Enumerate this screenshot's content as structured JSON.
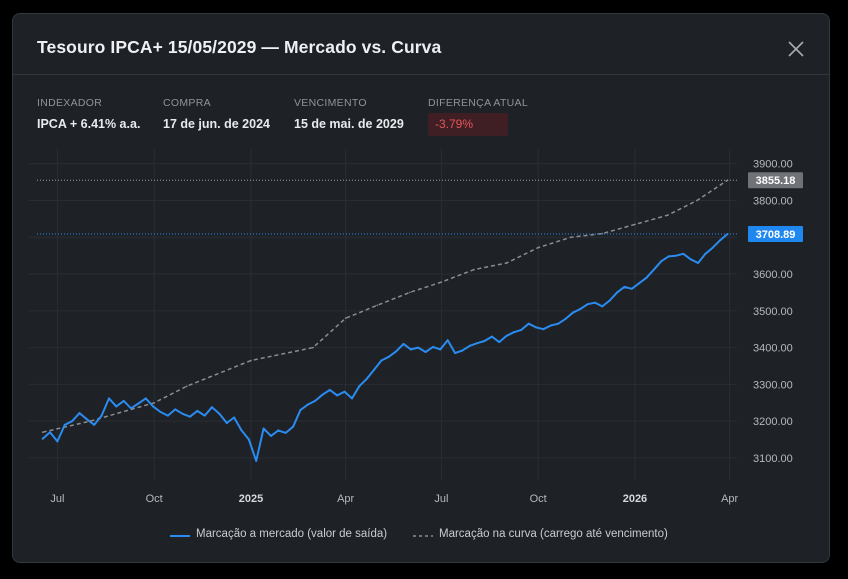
{
  "modal": {
    "title": "Tesouro IPCA+ 15/05/2029 — Mercado vs. Curva",
    "close_icon": "close-icon"
  },
  "info": [
    {
      "label": "INDEXADOR",
      "value": "IPCA + 6.41% a.a."
    },
    {
      "label": "COMPRA",
      "value": "17 de jun. de 2024"
    },
    {
      "label": "VENCIMENTO",
      "value": "15 de mai. de 2029"
    },
    {
      "label": "DIFERENÇA ATUAL",
      "value": "-3.79%"
    }
  ],
  "colors": {
    "market": "#2a8cf0",
    "curve": "#8a8d92",
    "negative": "#e5555a",
    "background": "#1e2126"
  },
  "chart_data": {
    "type": "line",
    "x_ticks": [
      "Jul",
      "Oct",
      "2025",
      "Apr",
      "Jul",
      "Oct",
      "2026",
      "Apr"
    ],
    "y_ticks": [
      "3100.00",
      "3200.00",
      "3300.00",
      "3400.00",
      "3500.00",
      "3600.00",
      "3700.00",
      "3800.00",
      "3900.00"
    ],
    "ylim": [
      3040,
      3940
    ],
    "grid": true,
    "legend_position": "bottom",
    "last_values": {
      "market": "3708.89",
      "curve": "3855.18"
    },
    "series": [
      {
        "name": "Marcação a mercado (valor de saída)",
        "style": "solid",
        "color": "#2a8cf0",
        "points": [
          [
            "2024-06-17",
            3152
          ],
          [
            "2024-06-24",
            3170
          ],
          [
            "2024-07-01",
            3145
          ],
          [
            "2024-07-08",
            3190
          ],
          [
            "2024-07-15",
            3200
          ],
          [
            "2024-07-22",
            3222
          ],
          [
            "2024-07-29",
            3205
          ],
          [
            "2024-08-05",
            3190
          ],
          [
            "2024-08-12",
            3215
          ],
          [
            "2024-08-19",
            3262
          ],
          [
            "2024-08-26",
            3240
          ],
          [
            "2024-09-02",
            3255
          ],
          [
            "2024-09-09",
            3235
          ],
          [
            "2024-09-16",
            3248
          ],
          [
            "2024-09-23",
            3262
          ],
          [
            "2024-09-30",
            3240
          ],
          [
            "2024-10-07",
            3225
          ],
          [
            "2024-10-14",
            3215
          ],
          [
            "2024-10-21",
            3232
          ],
          [
            "2024-10-28",
            3220
          ],
          [
            "2024-11-04",
            3212
          ],
          [
            "2024-11-11",
            3228
          ],
          [
            "2024-11-18",
            3215
          ],
          [
            "2024-11-25",
            3238
          ],
          [
            "2024-12-02",
            3220
          ],
          [
            "2024-12-09",
            3195
          ],
          [
            "2024-12-16",
            3210
          ],
          [
            "2024-12-23",
            3175
          ],
          [
            "2024-12-30",
            3150
          ],
          [
            "2025-01-06",
            3092
          ],
          [
            "2025-01-13",
            3180
          ],
          [
            "2025-01-20",
            3160
          ],
          [
            "2025-01-27",
            3175
          ],
          [
            "2025-02-03",
            3168
          ],
          [
            "2025-02-10",
            3185
          ],
          [
            "2025-02-17",
            3230
          ],
          [
            "2025-02-24",
            3245
          ],
          [
            "2025-03-03",
            3255
          ],
          [
            "2025-03-10",
            3272
          ],
          [
            "2025-03-17",
            3285
          ],
          [
            "2025-03-24",
            3270
          ],
          [
            "2025-03-31",
            3280
          ],
          [
            "2025-04-07",
            3262
          ],
          [
            "2025-04-14",
            3295
          ],
          [
            "2025-04-21",
            3315
          ],
          [
            "2025-04-28",
            3340
          ],
          [
            "2025-05-05",
            3365
          ],
          [
            "2025-05-12",
            3375
          ],
          [
            "2025-05-19",
            3390
          ],
          [
            "2025-05-26",
            3410
          ],
          [
            "2025-06-02",
            3395
          ],
          [
            "2025-06-09",
            3400
          ],
          [
            "2025-06-16",
            3388
          ],
          [
            "2025-06-23",
            3402
          ],
          [
            "2025-06-30",
            3395
          ],
          [
            "2025-07-07",
            3420
          ],
          [
            "2025-07-14",
            3385
          ],
          [
            "2025-07-21",
            3392
          ],
          [
            "2025-07-28",
            3405
          ],
          [
            "2025-08-04",
            3412
          ],
          [
            "2025-08-11",
            3418
          ],
          [
            "2025-08-18",
            3430
          ],
          [
            "2025-08-25",
            3415
          ],
          [
            "2025-09-01",
            3432
          ],
          [
            "2025-09-08",
            3442
          ],
          [
            "2025-09-15",
            3448
          ],
          [
            "2025-09-22",
            3465
          ],
          [
            "2025-09-29",
            3455
          ],
          [
            "2025-10-06",
            3450
          ],
          [
            "2025-10-13",
            3460
          ],
          [
            "2025-10-20",
            3465
          ],
          [
            "2025-10-27",
            3478
          ],
          [
            "2025-11-03",
            3495
          ],
          [
            "2025-11-10",
            3505
          ],
          [
            "2025-11-17",
            3518
          ],
          [
            "2025-11-24",
            3522
          ],
          [
            "2025-12-01",
            3512
          ],
          [
            "2025-12-08",
            3528
          ],
          [
            "2025-12-15",
            3550
          ],
          [
            "2025-12-22",
            3565
          ],
          [
            "2025-12-29",
            3560
          ],
          [
            "2026-01-05",
            3575
          ],
          [
            "2026-01-12",
            3590
          ],
          [
            "2026-01-19",
            3612
          ],
          [
            "2026-01-26",
            3635
          ],
          [
            "2026-02-02",
            3648
          ],
          [
            "2026-02-09",
            3650
          ],
          [
            "2026-02-16",
            3655
          ],
          [
            "2026-02-23",
            3640
          ],
          [
            "2026-03-02",
            3630
          ],
          [
            "2026-03-09",
            3655
          ],
          [
            "2026-03-16",
            3672
          ],
          [
            "2026-03-23",
            3692
          ],
          [
            "2026-03-30",
            3708.89
          ]
        ]
      },
      {
        "name": "Marcação na curva (carrego até vencimento)",
        "style": "dashed",
        "color": "#8a8d92",
        "points": [
          [
            "2024-06-17",
            3170
          ],
          [
            "2024-08-01",
            3200
          ],
          [
            "2024-10-01",
            3250
          ],
          [
            "2024-11-01",
            3295
          ],
          [
            "2025-01-01",
            3365
          ],
          [
            "2025-03-01",
            3400
          ],
          [
            "2025-04-01",
            3480
          ],
          [
            "2025-05-01",
            3515
          ],
          [
            "2025-06-01",
            3550
          ],
          [
            "2025-07-01",
            3578
          ],
          [
            "2025-08-01",
            3612
          ],
          [
            "2025-09-01",
            3630
          ],
          [
            "2025-10-01",
            3672
          ],
          [
            "2025-11-01",
            3700
          ],
          [
            "2025-12-01",
            3710
          ],
          [
            "2026-01-01",
            3735
          ],
          [
            "2026-02-01",
            3760
          ],
          [
            "2026-03-01",
            3800
          ],
          [
            "2026-03-30",
            3855.18
          ]
        ]
      }
    ]
  },
  "legend": [
    {
      "label": "Marcação a mercado (valor de saída)"
    },
    {
      "label": "Marcação na curva (carrego até vencimento)"
    }
  ]
}
